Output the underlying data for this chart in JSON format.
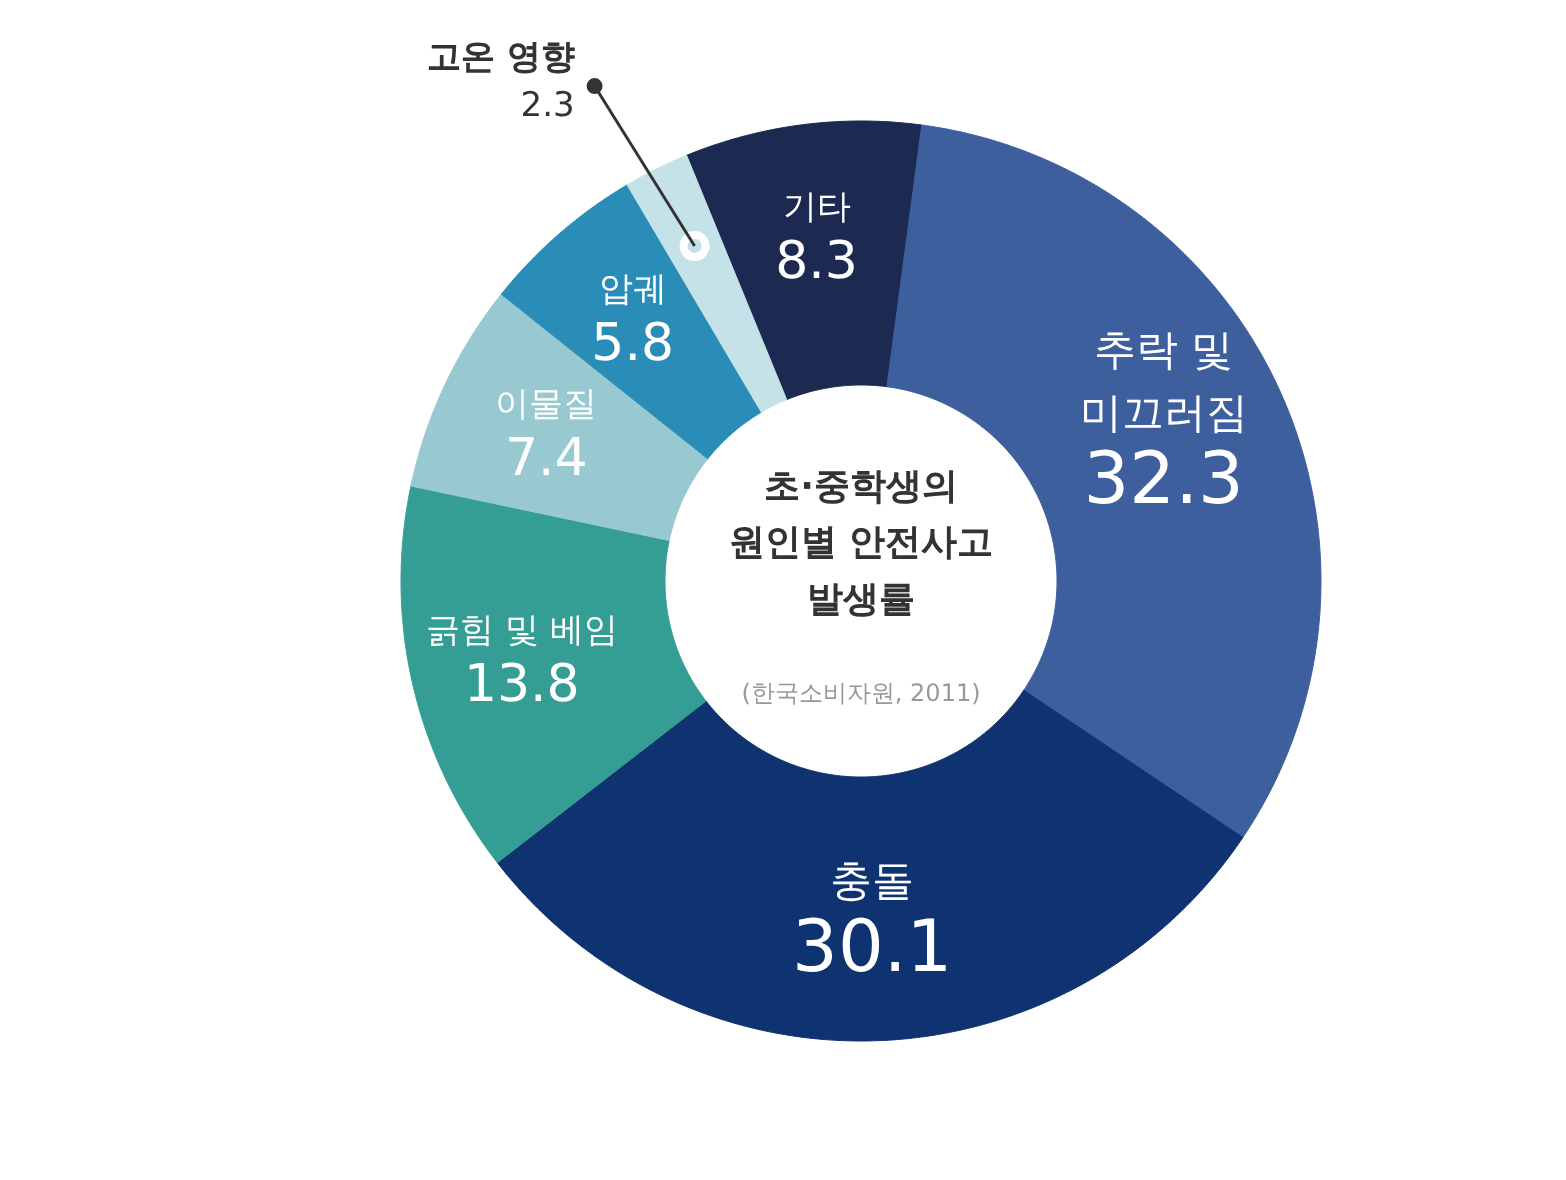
{
  "chart_data": {
    "type": "donut",
    "title": "초·중학생의\n원인별 안전사고\n발생률",
    "subtitle": "(한국소비자원, 2011)",
    "categories": [
      "기타",
      "추락 및\n미끄러짐",
      "충돌",
      "긁힘 및 베임",
      "이물질",
      "압궤",
      "고온 영향"
    ],
    "values": [
      8.3,
      32.3,
      30.1,
      13.8,
      7.4,
      5.8,
      2.3
    ],
    "colors": [
      "#1c2a52",
      "#3d5f9e",
      "#0f3270",
      "#359e94",
      "#98c9d0",
      "#2a8db8",
      "#c5e2e8"
    ],
    "data_labels": true
  }
}
